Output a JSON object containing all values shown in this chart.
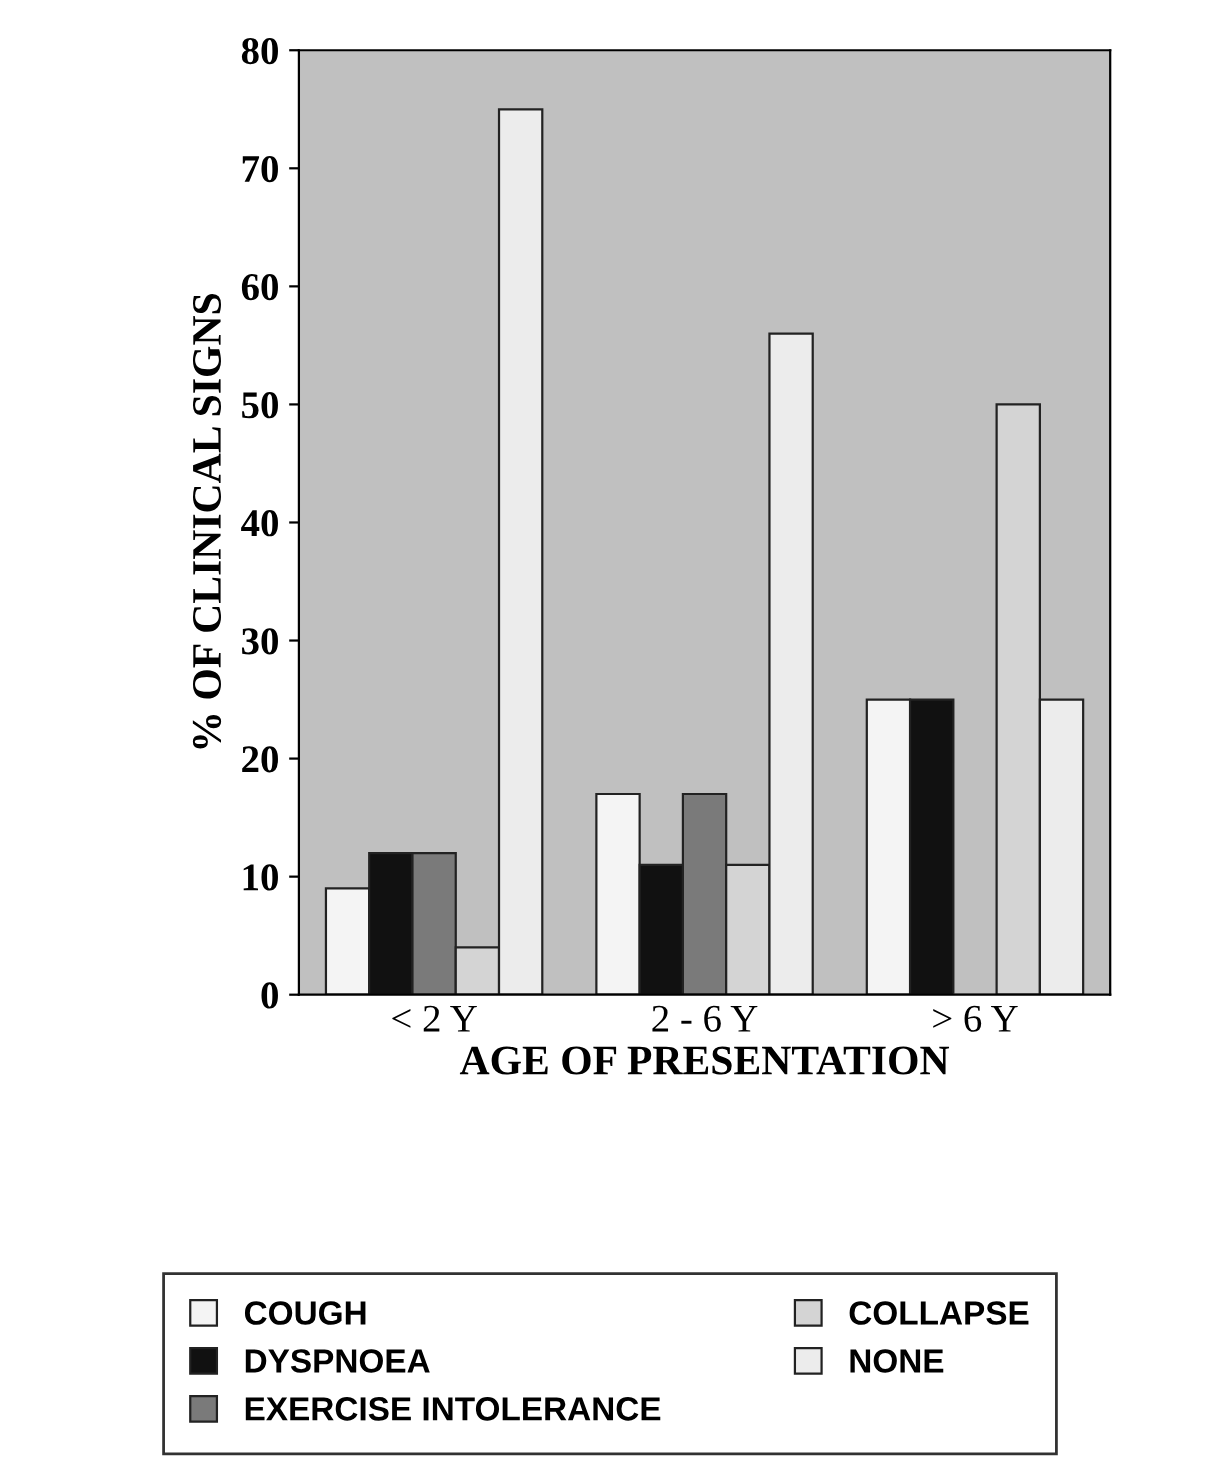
{
  "chart_data": {
    "type": "bar",
    "xlabel": "AGE OF PRESENTATION",
    "ylabel": "% OF CLINICAL SIGNS",
    "categories": [
      "< 2 Y",
      "2 - 6 Y",
      "> 6 Y"
    ],
    "series": [
      {
        "name": "COUGH",
        "color": "#f4f4f4",
        "values": [
          9,
          17,
          25
        ]
      },
      {
        "name": "DYSPNOEA",
        "color": "#111111",
        "values": [
          12,
          11,
          25
        ]
      },
      {
        "name": "EXERCISE INTOLERANCE",
        "color": "#7a7a7a",
        "values": [
          12,
          17,
          0
        ]
      },
      {
        "name": "COLLAPSE",
        "color": "#d4d4d4",
        "values": [
          4,
          11,
          50
        ]
      },
      {
        "name": "NONE",
        "color": "#ececec",
        "values": [
          75,
          56,
          25
        ]
      }
    ],
    "ylim": [
      0,
      80
    ],
    "yticks": [
      0,
      10,
      20,
      30,
      40,
      50,
      60,
      70,
      80
    ],
    "grid": false,
    "legend": "bottom"
  }
}
